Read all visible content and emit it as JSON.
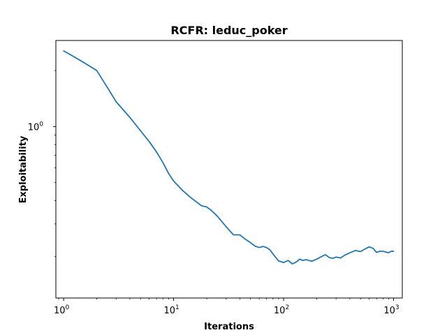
{
  "chart_data": {
    "type": "line",
    "title": "RCFR: leduc_poker",
    "xlabel": "Iterations",
    "ylabel": "Exploitability",
    "x_scale": "log",
    "y_scale": "log",
    "xlim": [
      0.85,
      1200
    ],
    "ylim": [
      0.12,
      2.9
    ],
    "x_ticks": [
      {
        "value": 1,
        "base": "10",
        "exp": "0"
      },
      {
        "value": 10,
        "base": "10",
        "exp": "1"
      },
      {
        "value": 100,
        "base": "10",
        "exp": "2"
      },
      {
        "value": 1000,
        "base": "10",
        "exp": "3"
      }
    ],
    "y_ticks": [
      {
        "value": 1,
        "base": "10",
        "exp": "0"
      }
    ],
    "grid": false,
    "series": [
      {
        "color": "#1f77b4",
        "x": [
          1,
          1.2,
          1.5,
          2,
          2.5,
          3,
          4,
          5,
          6,
          7,
          8,
          9,
          10,
          12,
          14,
          16,
          18,
          20,
          22,
          25,
          30,
          35,
          40,
          45,
          50,
          55,
          60,
          65,
          70,
          75,
          80,
          90,
          100,
          110,
          120,
          130,
          140,
          150,
          160,
          180,
          200,
          220,
          240,
          260,
          280,
          300,
          330,
          360,
          400,
          450,
          500,
          550,
          600,
          650,
          700,
          750,
          800,
          850,
          900,
          950,
          1000
        ],
        "y": [
          2.55,
          2.4,
          2.22,
          2.0,
          1.62,
          1.36,
          1.12,
          0.95,
          0.83,
          0.73,
          0.64,
          0.56,
          0.51,
          0.455,
          0.42,
          0.395,
          0.375,
          0.37,
          0.355,
          0.33,
          0.29,
          0.262,
          0.262,
          0.248,
          0.238,
          0.228,
          0.224,
          0.227,
          0.224,
          0.218,
          0.207,
          0.19,
          0.186,
          0.191,
          0.183,
          0.187,
          0.194,
          0.191,
          0.193,
          0.189,
          0.194,
          0.2,
          0.205,
          0.198,
          0.196,
          0.199,
          0.197,
          0.204,
          0.21,
          0.216,
          0.213,
          0.22,
          0.226,
          0.222,
          0.211,
          0.214,
          0.214,
          0.212,
          0.21,
          0.214,
          0.214
        ]
      }
    ]
  }
}
